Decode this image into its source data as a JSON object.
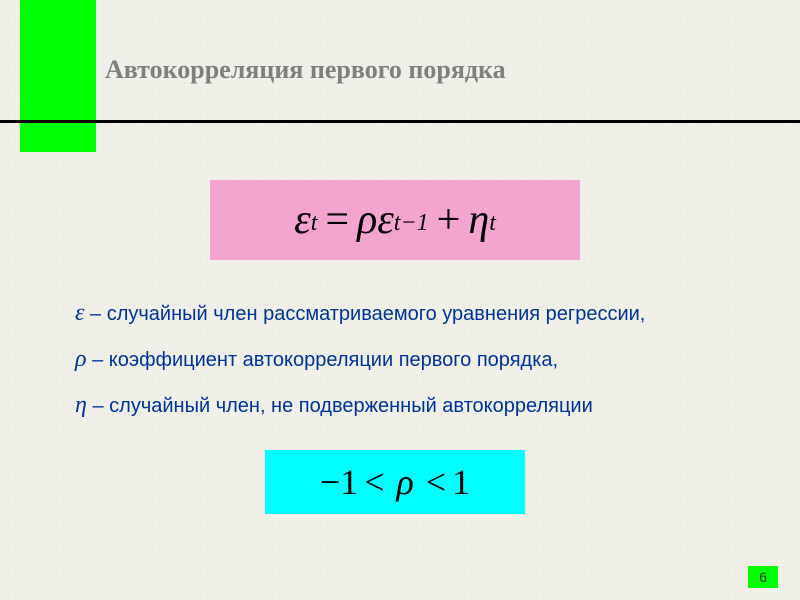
{
  "title": "Автокорреляция первого порядка",
  "formula_main": {
    "background_color": "#f4a5cf",
    "text_color": "#000000",
    "fontsize": 42,
    "html": "<span>ε</span><sub>t</sub> = <span>ρε</span><sub>t−1</sub> + <span>η</span><sub>t</sub>"
  },
  "definitions": [
    {
      "symbol": "ε",
      "text": "случайный член рассматриваемого уравнения регрессии,"
    },
    {
      "symbol": "ρ",
      "text": "коэффициент автокорреляции первого порядка,"
    },
    {
      "symbol": "η",
      "text": "случайный член, не подверженный автокорреляции"
    }
  ],
  "formula_range": {
    "background_color": "#00ffff",
    "text_color": "#000000",
    "fontsize": 36,
    "minus_one": "−1",
    "lt1": "<",
    "rho": "ρ",
    "lt2": "<",
    "one": "1"
  },
  "page_number": "6",
  "colors": {
    "background": "#f0efe8",
    "accent_green": "#00ff00",
    "title_gray": "#7f7f7f",
    "body_text": "#003399",
    "rule": "#000000"
  }
}
